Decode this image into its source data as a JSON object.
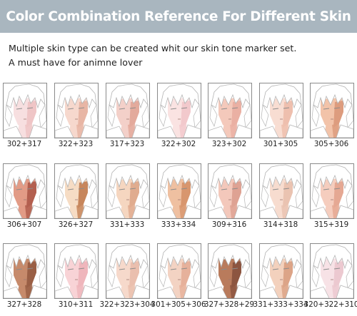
{
  "header": {
    "title": "Color Combination Reference For Different Skin"
  },
  "intro": {
    "line1": "Multiple skin type can be created whit our skin tone marker set.",
    "line2": "A must have for animne lover"
  },
  "colors": {
    "banner": "#a9b6bf",
    "hair_outline": "#b4b4b4",
    "frame": "#8a8a8a"
  },
  "swatches": [
    {
      "label": "302+317",
      "base": "#f7dfe0",
      "shade": "#efc5c6"
    },
    {
      "label": "322+323",
      "base": "#f6d8cd",
      "shade": "#e8b6a5"
    },
    {
      "label": "317+323",
      "base": "#f3d0c9",
      "shade": "#e3aa9c"
    },
    {
      "label": "322+302",
      "base": "#fae3e2",
      "shade": "#f2c9cc"
    },
    {
      "label": "323+302",
      "base": "#f4c9bb",
      "shade": "#eab0a3"
    },
    {
      "label": "301+305",
      "base": "#f8ddd2",
      "shade": "#eebfae"
    },
    {
      "label": "305+306",
      "base": "#f2c3a9",
      "shade": "#dd9c7e"
    },
    {
      "label": "306+307",
      "base": "#e29b86",
      "shade": "#b35f4f"
    },
    {
      "label": "326+327",
      "base": "#f6dcc4",
      "shade": "#c7865c"
    },
    {
      "label": "331+333",
      "base": "#f5d6c0",
      "shade": "#e0ac8f"
    },
    {
      "label": "333+334",
      "base": "#efc0a1",
      "shade": "#d8966e"
    },
    {
      "label": "309+316",
      "base": "#f3c8bb",
      "shade": "#dea293"
    },
    {
      "label": "314+318",
      "base": "#f7dccf",
      "shade": "#eac3b1"
    },
    {
      "label": "315+319",
      "base": "#f5cdbe",
      "shade": "#e5a893"
    },
    {
      "label": "327+328",
      "base": "#c68a6b",
      "shade": "#9a5f45"
    },
    {
      "label": "310+311",
      "base": "#f8d3d6",
      "shade": "#efb6bc"
    },
    {
      "label": "322+323+304",
      "base": "#f6d9cb",
      "shade": "#eabfae"
    },
    {
      "label": "301+305+306",
      "base": "#f3d3c3",
      "shade": "#e6b19b"
    },
    {
      "label": "327+328+29",
      "base": "#b97b5c",
      "shade": "#8c5540"
    },
    {
      "label": "331+333+334",
      "base": "#f3d1bd",
      "shade": "#dca487"
    },
    {
      "label": "320+322+310",
      "base": "#f7e2e6",
      "shade": "#ecc9d0"
    }
  ]
}
